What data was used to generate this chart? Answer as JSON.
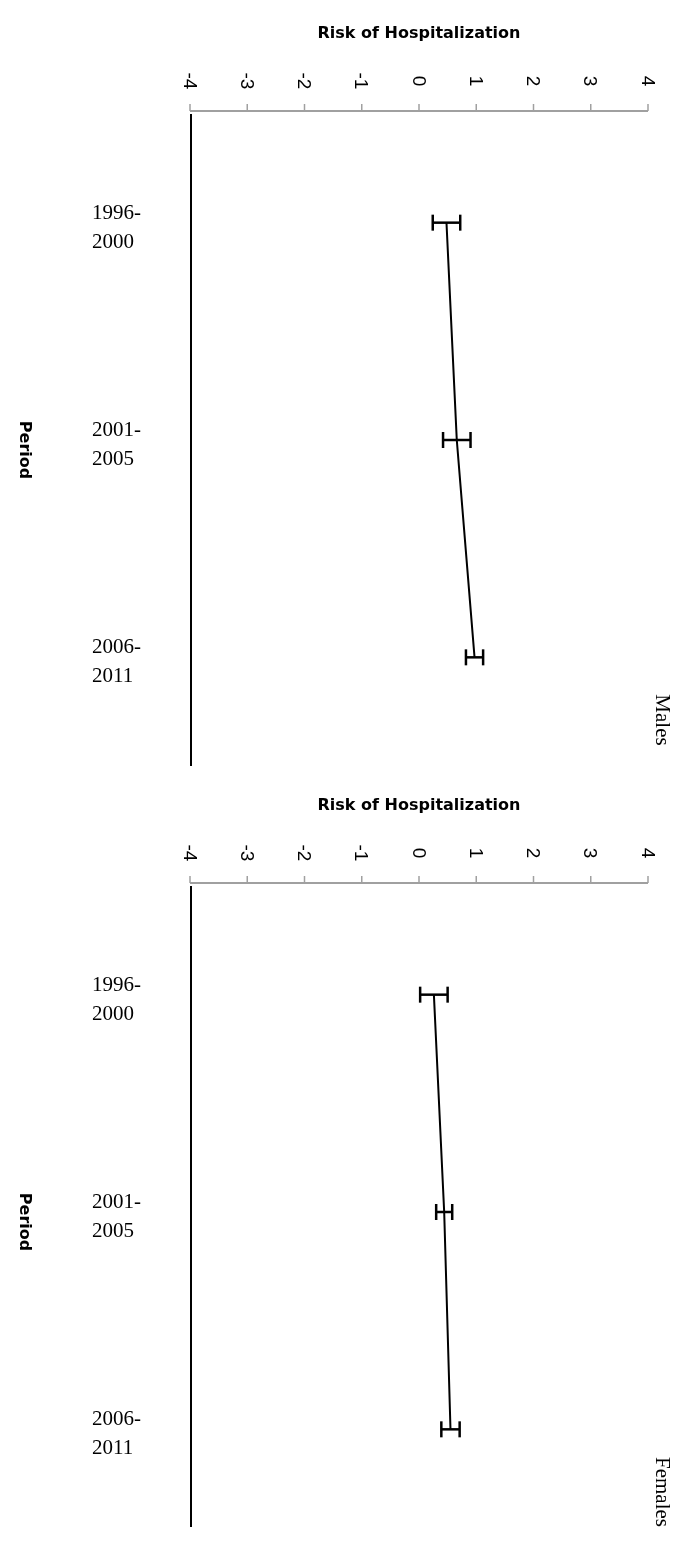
{
  "chart_data": [
    {
      "type": "line",
      "title": "Males",
      "xlabel": "Risk of Hospitalization",
      "ylabel": "Period",
      "orientation": "horizontal",
      "categories": [
        "1996-2000",
        "2001-2005",
        "2006-2011"
      ],
      "xlim": [
        -4,
        4
      ],
      "xticks": [
        -4,
        -3,
        -2,
        -1,
        0,
        1,
        2,
        3,
        4
      ],
      "grid": false,
      "marker": "none",
      "line_style": "solid",
      "series": [
        {
          "color": "#000000",
          "values": [
            0.48,
            0.66,
            0.97
          ],
          "errors": [
            0.24,
            0.24,
            0.15
          ]
        }
      ]
    },
    {
      "type": "line",
      "title": "Females",
      "xlabel": "Risk of Hospitalization",
      "ylabel": "Period",
      "orientation": "horizontal",
      "categories": [
        "1996-2000",
        "2001-2005",
        "2006-2011"
      ],
      "xlim": [
        -4,
        4
      ],
      "xticks": [
        -4,
        -3,
        -2,
        -1,
        0,
        1,
        2,
        3,
        4
      ],
      "grid": false,
      "marker": "none",
      "line_style": "solid",
      "series": [
        {
          "color": "#000000",
          "values": [
            0.26,
            0.44,
            0.55
          ],
          "errors": [
            0.24,
            0.14,
            0.16
          ]
        }
      ]
    }
  ]
}
